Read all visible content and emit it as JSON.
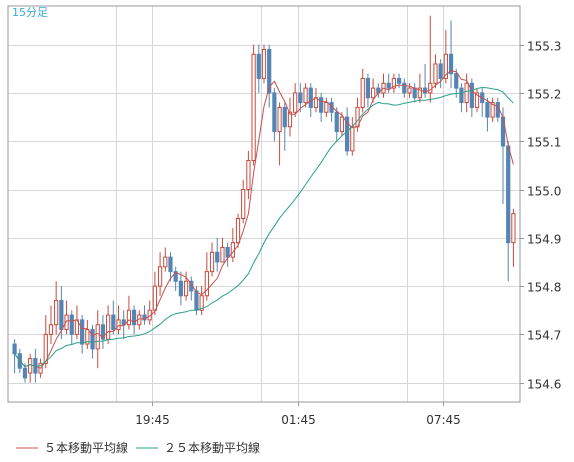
{
  "chart_data": {
    "type": "candlestick",
    "timeframe_label": "15分足",
    "x_tick_labels": [
      "19:45",
      "01:45",
      "07:45"
    ],
    "y_ticks": [
      154.6,
      154.7,
      154.8,
      154.9,
      155.0,
      155.1,
      155.2,
      155.3
    ],
    "ylim": [
      154.56,
      155.38
    ],
    "grid": true,
    "candles": [
      [
        154.68,
        154.66,
        154.69,
        154.62
      ],
      [
        154.66,
        154.63,
        154.67,
        154.62
      ],
      [
        154.63,
        154.61,
        154.64,
        154.6
      ],
      [
        154.62,
        154.65,
        154.66,
        154.6
      ],
      [
        154.65,
        154.62,
        154.67,
        154.6
      ],
      [
        154.62,
        154.64,
        154.65,
        154.61
      ],
      [
        154.64,
        154.7,
        154.74,
        154.63
      ],
      [
        154.7,
        154.72,
        154.76,
        154.68
      ],
      [
        154.72,
        154.77,
        154.81,
        154.7
      ],
      [
        154.77,
        154.71,
        154.8,
        154.69
      ],
      [
        154.71,
        154.74,
        154.77,
        154.7
      ],
      [
        154.74,
        154.7,
        154.75,
        154.68
      ],
      [
        154.7,
        154.73,
        154.76,
        154.69
      ],
      [
        154.73,
        154.68,
        154.74,
        154.66
      ],
      [
        154.68,
        154.71,
        154.73,
        154.67
      ],
      [
        154.71,
        154.67,
        154.72,
        154.65
      ],
      [
        154.67,
        154.72,
        154.75,
        154.63
      ],
      [
        154.72,
        154.69,
        154.74,
        154.67
      ],
      [
        154.69,
        154.74,
        154.76,
        154.68
      ],
      [
        154.74,
        154.71,
        154.77,
        154.7
      ],
      [
        154.71,
        154.73,
        154.76,
        154.7
      ],
      [
        154.73,
        154.72,
        154.75,
        154.69
      ],
      [
        154.72,
        154.75,
        154.78,
        154.71
      ],
      [
        154.75,
        154.72,
        154.76,
        154.7
      ],
      [
        154.72,
        154.74,
        154.75,
        154.71
      ],
      [
        154.74,
        154.73,
        154.76,
        154.72
      ],
      [
        154.73,
        154.75,
        154.77,
        154.72
      ],
      [
        154.75,
        154.8,
        154.83,
        154.74
      ],
      [
        154.8,
        154.84,
        154.87,
        154.78
      ],
      [
        154.84,
        154.86,
        154.88,
        154.83
      ],
      [
        154.86,
        154.83,
        154.87,
        154.81
      ],
      [
        154.83,
        154.81,
        154.84,
        154.79
      ],
      [
        154.81,
        154.78,
        154.83,
        154.76
      ],
      [
        154.78,
        154.81,
        154.83,
        154.77
      ],
      [
        154.81,
        154.79,
        154.82,
        154.77
      ],
      [
        154.79,
        154.75,
        154.8,
        154.74
      ],
      [
        154.75,
        154.78,
        154.8,
        154.74
      ],
      [
        154.78,
        154.83,
        154.87,
        154.77
      ],
      [
        154.83,
        154.87,
        154.89,
        154.82
      ],
      [
        154.87,
        154.85,
        154.9,
        154.83
      ],
      [
        154.85,
        154.88,
        154.9,
        154.85
      ],
      [
        154.88,
        154.86,
        154.89,
        154.84
      ],
      [
        154.86,
        154.89,
        154.92,
        154.85
      ],
      [
        154.89,
        154.94,
        154.95,
        154.88
      ],
      [
        154.94,
        155.0,
        155.02,
        154.93
      ],
      [
        155.0,
        155.06,
        155.08,
        154.98
      ],
      [
        155.06,
        155.28,
        155.3,
        155.05
      ],
      [
        155.28,
        155.23,
        155.3,
        155.2
      ],
      [
        155.23,
        155.29,
        155.3,
        155.22
      ],
      [
        155.29,
        155.2,
        155.3,
        155.17
      ],
      [
        155.2,
        155.12,
        155.21,
        155.1
      ],
      [
        155.12,
        155.17,
        155.18,
        155.05
      ],
      [
        155.17,
        155.13,
        155.18,
        155.08
      ],
      [
        155.13,
        155.16,
        155.19,
        155.11
      ],
      [
        155.16,
        155.2,
        155.22,
        155.15
      ],
      [
        155.2,
        155.18,
        155.22,
        155.16
      ],
      [
        155.18,
        155.21,
        155.22,
        155.17
      ],
      [
        155.21,
        155.17,
        155.22,
        155.15
      ],
      [
        155.17,
        155.19,
        155.21,
        155.16
      ],
      [
        155.19,
        155.16,
        155.2,
        155.14
      ],
      [
        155.16,
        155.18,
        155.19,
        155.15
      ],
      [
        155.18,
        155.16,
        155.19,
        155.14
      ],
      [
        155.16,
        155.12,
        155.17,
        155.1
      ],
      [
        155.12,
        155.15,
        155.16,
        155.11
      ],
      [
        155.15,
        155.08,
        155.17,
        155.07
      ],
      [
        155.08,
        155.13,
        155.15,
        155.07
      ],
      [
        155.13,
        155.17,
        155.19,
        155.12
      ],
      [
        155.17,
        155.23,
        155.25,
        155.16
      ],
      [
        155.23,
        155.19,
        155.24,
        155.17
      ],
      [
        155.19,
        155.21,
        155.23,
        155.18
      ],
      [
        155.21,
        155.2,
        155.22,
        155.19
      ],
      [
        155.2,
        155.22,
        155.24,
        155.19
      ],
      [
        155.22,
        155.21,
        155.24,
        155.2
      ],
      [
        155.21,
        155.23,
        155.24,
        155.2
      ],
      [
        155.23,
        155.22,
        155.24,
        155.21
      ],
      [
        155.22,
        155.2,
        155.23,
        155.19
      ],
      [
        155.2,
        155.21,
        155.22,
        155.19
      ],
      [
        155.21,
        155.19,
        155.22,
        155.18
      ],
      [
        155.19,
        155.21,
        155.24,
        155.18
      ],
      [
        155.21,
        155.2,
        155.26,
        155.19
      ],
      [
        155.2,
        155.22,
        155.36,
        155.18
      ],
      [
        155.22,
        155.26,
        155.28,
        155.21
      ],
      [
        155.26,
        155.23,
        155.27,
        155.21
      ],
      [
        155.23,
        155.28,
        155.33,
        155.22
      ],
      [
        155.28,
        155.24,
        155.35,
        155.21
      ],
      [
        155.24,
        155.21,
        155.25,
        155.19
      ],
      [
        155.21,
        155.18,
        155.22,
        155.16
      ],
      [
        155.18,
        155.22,
        155.24,
        155.16
      ],
      [
        155.22,
        155.17,
        155.23,
        155.15
      ],
      [
        155.17,
        155.2,
        155.21,
        155.16
      ],
      [
        155.2,
        155.18,
        155.21,
        155.15
      ],
      [
        155.18,
        155.15,
        155.19,
        155.12
      ],
      [
        155.15,
        155.18,
        155.19,
        155.14
      ],
      [
        155.18,
        155.15,
        155.19,
        155.14
      ],
      [
        155.15,
        155.09,
        155.17,
        154.97
      ],
      [
        155.09,
        154.89,
        155.1,
        154.81
      ],
      [
        154.89,
        154.95,
        154.96,
        154.84
      ]
    ],
    "series": [
      {
        "name": "５本移動平均線",
        "color": "#c85050"
      },
      {
        "name": "２５本移動平均線",
        "color": "#2aa08a"
      }
    ],
    "colors": {
      "bull": "#c84b3c",
      "bear": "#5585b5",
      "grid": "#d7d7d7",
      "axis_text": "#333333",
      "frame": "#999999",
      "timeframe": "#3aaad8"
    }
  }
}
